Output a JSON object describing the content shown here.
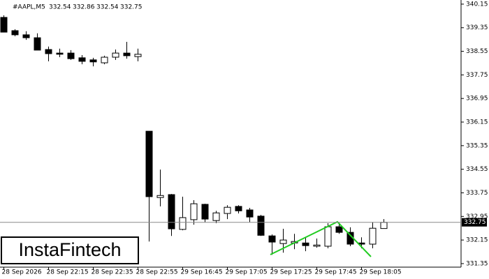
{
  "chart_data": {
    "type": "candlestick",
    "title": "#AAPL,M5",
    "watermark": "InstaFintech",
    "categories": [
      "28 Sep 2026",
      null,
      null,
      null,
      "28 Sep 22:15",
      null,
      null,
      null,
      "28 Sep 22:35",
      null,
      null,
      null,
      "28 Sep 22:55",
      null,
      null,
      null,
      "29 Sep 16:45",
      null,
      null,
      null,
      "29 Sep 17:05",
      null,
      null,
      null,
      "29 Sep 17:25",
      null,
      null,
      null,
      "29 Sep 17:45",
      null,
      null,
      null,
      "29 Sep 18:05",
      null,
      null
    ],
    "open": [
      339.7,
      339.25,
      339.11,
      339.01,
      338.61,
      338.49,
      338.49,
      338.33,
      338.26,
      338.16,
      338.35,
      338.49,
      338.37,
      335.84,
      333.59,
      333.69,
      332.51,
      332.84,
      333.36,
      332.81,
      333.05,
      333.29,
      333.17,
      332.96,
      332.29,
      332.03,
      332.05,
      332.05,
      331.94,
      331.94,
      332.6,
      332.41,
      332.05,
      332.01,
      332.54
    ],
    "high": [
      339.77,
      339.3,
      339.23,
      339.16,
      338.71,
      338.64,
      338.59,
      338.42,
      338.33,
      338.4,
      338.61,
      338.87,
      338.64,
      335.84,
      334.54,
      333.71,
      333.62,
      333.5,
      333.38,
      333.14,
      333.33,
      333.33,
      333.24,
      333.0,
      332.34,
      332.53,
      332.36,
      332.24,
      332.2,
      332.72,
      332.76,
      332.58,
      332.24,
      332.76,
      332.86
    ],
    "low": [
      339.2,
      339.06,
      338.94,
      338.59,
      338.21,
      338.35,
      338.26,
      338.11,
      338.04,
      338.11,
      338.26,
      338.3,
      338.21,
      332.1,
      333.29,
      332.29,
      332.48,
      332.67,
      332.76,
      332.72,
      332.86,
      333.05,
      332.76,
      332.29,
      331.65,
      331.72,
      331.84,
      331.77,
      331.89,
      331.87,
      332.36,
      331.94,
      331.87,
      331.87,
      332.54
    ],
    "close": [
      339.2,
      339.11,
      339.01,
      338.59,
      338.47,
      338.45,
      338.3,
      338.21,
      338.19,
      338.35,
      338.49,
      338.4,
      338.45,
      333.62,
      333.66,
      332.53,
      332.91,
      333.38,
      332.86,
      333.07,
      333.26,
      333.14,
      332.93,
      332.31,
      332.08,
      332.15,
      332.1,
      331.96,
      331.98,
      332.6,
      332.41,
      332.01,
      332.01,
      332.55,
      332.75
    ],
    "up_color": "#ffffff",
    "down_color": "#000000",
    "ylim": [
      331.23,
      340.29
    ],
    "yticks": [
      340.15,
      339.35,
      338.55,
      337.75,
      336.95,
      336.15,
      335.35,
      334.55,
      333.75,
      332.95,
      332.15,
      331.35
    ],
    "grid": false
  }
}
